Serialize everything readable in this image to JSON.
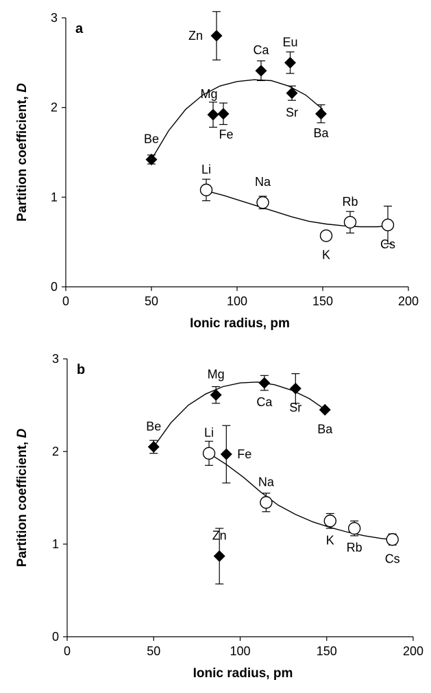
{
  "chart_data": [
    {
      "type": "scatter",
      "panel_label": "a",
      "xlabel": "Ionic radius, pm",
      "ylabel_main": "Partition coefficient, ",
      "ylabel_italic": "D",
      "xlim": [
        0,
        200
      ],
      "ylim": [
        0,
        3
      ],
      "xticks": [
        0,
        50,
        100,
        150,
        200
      ],
      "yticks": [
        0,
        1,
        2,
        3
      ],
      "grid": false,
      "series": [
        {
          "marker": "filled-diamond",
          "points": [
            {
              "label": "Be",
              "x": 50,
              "y": 1.42,
              "err": 0.05,
              "label_pos": "above"
            },
            {
              "label": "Mg",
              "x": 86,
              "y": 1.92,
              "err": 0.14,
              "label_pos": "above-left"
            },
            {
              "label": "Zn",
              "x": 88,
              "y": 2.8,
              "err": 0.27,
              "label_pos": "left"
            },
            {
              "label": "Fe",
              "x": 92,
              "y": 1.93,
              "err": 0.12,
              "label_pos": "below-right"
            },
            {
              "label": "Ca",
              "x": 114,
              "y": 2.41,
              "err": 0.11,
              "label_pos": "above"
            },
            {
              "label": "Eu",
              "x": 131,
              "y": 2.5,
              "err": 0.12,
              "label_pos": "above"
            },
            {
              "label": "Sr",
              "x": 132,
              "y": 2.16,
              "err": 0.08,
              "label_pos": "below"
            },
            {
              "label": "Ba",
              "x": 149,
              "y": 1.93,
              "err": 0.1,
              "label_pos": "below"
            }
          ],
          "fit": [
            [
              50,
              1.42
            ],
            [
              60,
              1.74
            ],
            [
              70,
              1.98
            ],
            [
              80,
              2.14
            ],
            [
              90,
              2.24
            ],
            [
              100,
              2.29
            ],
            [
              110,
              2.31
            ],
            [
              120,
              2.3
            ],
            [
              130,
              2.24
            ],
            [
              140,
              2.14
            ],
            [
              150,
              1.98
            ]
          ]
        },
        {
          "marker": "open-circle",
          "points": [
            {
              "label": "Li",
              "x": 82,
              "y": 1.08,
              "err": 0.12,
              "label_pos": "above"
            },
            {
              "label": "Na",
              "x": 115,
              "y": 0.94,
              "err": 0.07,
              "label_pos": "above"
            },
            {
              "label": "K",
              "x": 152,
              "y": 0.57,
              "err": 0.0,
              "label_pos": "below"
            },
            {
              "label": "Rb",
              "x": 166,
              "y": 0.72,
              "err": 0.12,
              "label_pos": "above"
            },
            {
              "label": "Cs",
              "x": 188,
              "y": 0.69,
              "err": 0.21,
              "label_pos": "below"
            }
          ],
          "fit": [
            [
              82,
              1.07
            ],
            [
              92,
              1.02
            ],
            [
              102,
              0.96
            ],
            [
              112,
              0.9
            ],
            [
              122,
              0.84
            ],
            [
              132,
              0.78
            ],
            [
              142,
              0.73
            ],
            [
              152,
              0.7
            ],
            [
              162,
              0.68
            ],
            [
              172,
              0.67
            ],
            [
              182,
              0.67
            ],
            [
              188,
              0.68
            ]
          ]
        }
      ]
    },
    {
      "type": "scatter",
      "panel_label": "b",
      "xlabel": "Ionic radius, pm",
      "ylabel_main": "Partition coefficient, ",
      "ylabel_italic": "D",
      "xlim": [
        0,
        200
      ],
      "ylim": [
        0,
        3
      ],
      "xticks": [
        0,
        50,
        100,
        150,
        200
      ],
      "yticks": [
        0,
        1,
        2,
        3
      ],
      "grid": false,
      "series": [
        {
          "marker": "filled-diamond",
          "points": [
            {
              "label": "Be",
              "x": 50,
              "y": 2.05,
              "err": 0.07,
              "label_pos": "above"
            },
            {
              "label": "Mg",
              "x": 86,
              "y": 2.61,
              "err": 0.09,
              "label_pos": "above"
            },
            {
              "label": "Fe",
              "x": 92,
              "y": 1.97,
              "err": 0.31,
              "label_pos": "right"
            },
            {
              "label": "Zn",
              "x": 88,
              "y": 0.87,
              "err": 0.3,
              "label_pos": "above"
            },
            {
              "label": "Ca",
              "x": 114,
              "y": 2.74,
              "err": 0.08,
              "label_pos": "below"
            },
            {
              "label": "Sr",
              "x": 132,
              "y": 2.68,
              "err": 0.16,
              "label_pos": "below"
            },
            {
              "label": "Ba",
              "x": 149,
              "y": 2.45,
              "err": 0.0,
              "label_pos": "below"
            }
          ],
          "fit": [
            [
              50,
              2.05
            ],
            [
              60,
              2.31
            ],
            [
              70,
              2.5
            ],
            [
              80,
              2.62
            ],
            [
              90,
              2.7
            ],
            [
              100,
              2.74
            ],
            [
              110,
              2.75
            ],
            [
              120,
              2.72
            ],
            [
              130,
              2.66
            ],
            [
              140,
              2.57
            ],
            [
              150,
              2.44
            ]
          ]
        },
        {
          "marker": "open-circle",
          "points": [
            {
              "label": "Li",
              "x": 82,
              "y": 1.98,
              "err": 0.13,
              "label_pos": "above"
            },
            {
              "label": "Na",
              "x": 115,
              "y": 1.45,
              "err": 0.1,
              "label_pos": "above"
            },
            {
              "label": "K",
              "x": 152,
              "y": 1.25,
              "err": 0.08,
              "label_pos": "below"
            },
            {
              "label": "Rb",
              "x": 166,
              "y": 1.17,
              "err": 0.08,
              "label_pos": "below"
            },
            {
              "label": "Cs",
              "x": 188,
              "y": 1.05,
              "err": 0.06,
              "label_pos": "below"
            }
          ],
          "fit": [
            [
              82,
              1.98
            ],
            [
              92,
              1.86
            ],
            [
              102,
              1.72
            ],
            [
              112,
              1.56
            ],
            [
              122,
              1.42
            ],
            [
              132,
              1.32
            ],
            [
              142,
              1.24
            ],
            [
              152,
              1.18
            ],
            [
              162,
              1.13
            ],
            [
              172,
              1.09
            ],
            [
              182,
              1.06
            ],
            [
              188,
              1.05
            ]
          ]
        }
      ]
    }
  ]
}
